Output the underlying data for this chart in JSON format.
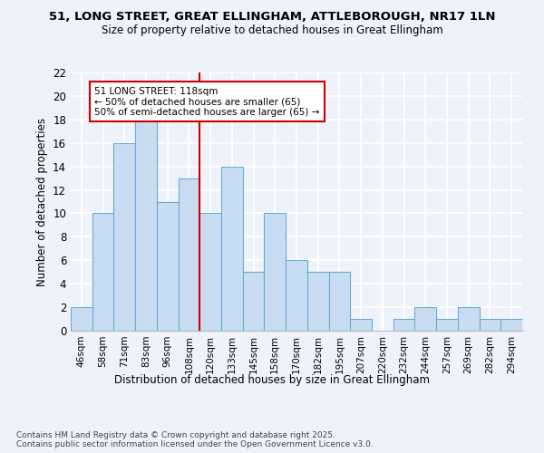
{
  "title_line1": "51, LONG STREET, GREAT ELLINGHAM, ATTLEBOROUGH, NR17 1LN",
  "title_line2": "Size of property relative to detached houses in Great Ellingham",
  "xlabel": "Distribution of detached houses by size in Great Ellingham",
  "ylabel": "Number of detached properties",
  "categories": [
    "46sqm",
    "58sqm",
    "71sqm",
    "83sqm",
    "96sqm",
    "108sqm",
    "120sqm",
    "133sqm",
    "145sqm",
    "158sqm",
    "170sqm",
    "182sqm",
    "195sqm",
    "207sqm",
    "220sqm",
    "232sqm",
    "244sqm",
    "257sqm",
    "269sqm",
    "282sqm",
    "294sqm"
  ],
  "values": [
    2,
    10,
    16,
    18,
    11,
    13,
    10,
    14,
    5,
    10,
    6,
    5,
    5,
    1,
    0,
    1,
    2,
    1,
    2,
    1,
    1
  ],
  "bar_color": "#c9ddf2",
  "bar_edge_color": "#6aaad4",
  "vline_color": "#cc0000",
  "annotation_text": "51 LONG STREET: 118sqm\n← 50% of detached houses are smaller (65)\n50% of semi-detached houses are larger (65) →",
  "annotation_box_color": "#ffffff",
  "annotation_box_edge": "#cc0000",
  "ylim": [
    0,
    22
  ],
  "yticks": [
    0,
    2,
    4,
    6,
    8,
    10,
    12,
    14,
    16,
    18,
    20,
    22
  ],
  "bg_color": "#eef2fa",
  "grid_color": "#ffffff",
  "footer_text": "Contains HM Land Registry data © Crown copyright and database right 2025.\nContains public sector information licensed under the Open Government Licence v3.0."
}
